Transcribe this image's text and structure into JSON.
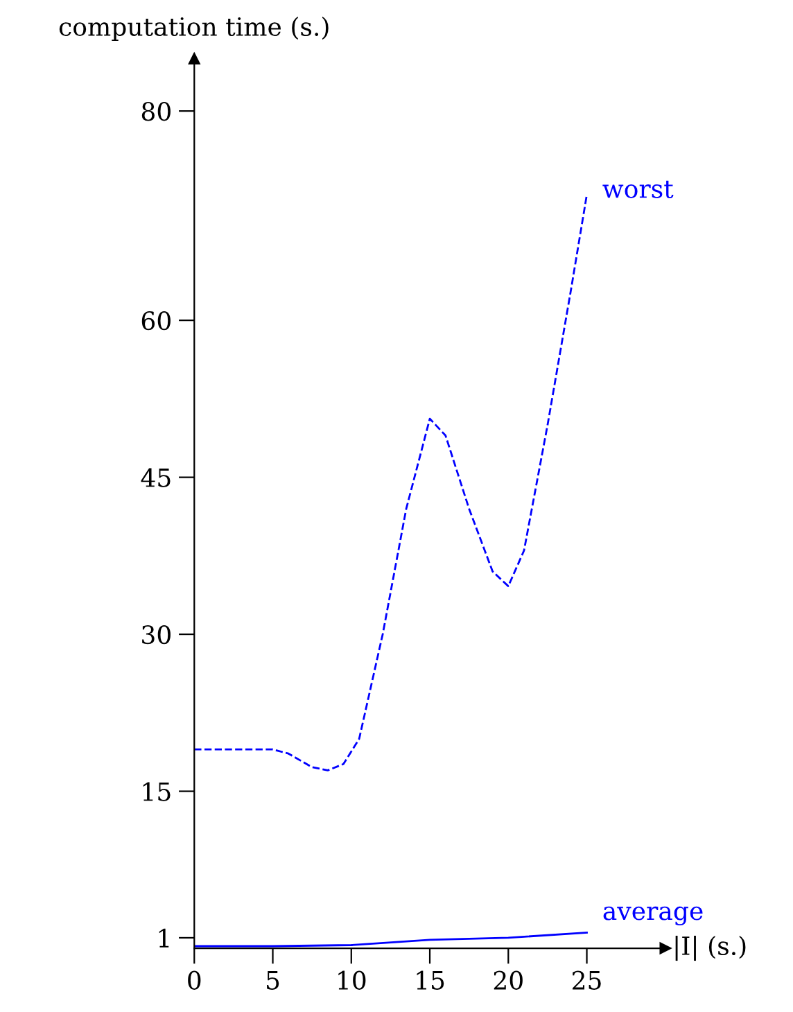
{
  "chart_data": {
    "type": "line",
    "ylabel": "computation time (s.)",
    "xlabel": "|I| (s.)",
    "xlim": [
      0,
      30
    ],
    "ylim": [
      0,
      85
    ],
    "xticks": [
      0,
      5,
      10,
      15,
      20,
      25
    ],
    "yticks": [
      1,
      15,
      30,
      45,
      60,
      80
    ],
    "grid": false,
    "legend": false,
    "marker": "none",
    "series": [
      {
        "name": "worst",
        "color": "#0000ff",
        "line_style": "dashed",
        "x": [
          0,
          5,
          6,
          7.5,
          8.5,
          9.5,
          10.5,
          12,
          13.5,
          15,
          16,
          17.5,
          19,
          20,
          21,
          22.5,
          24,
          25
        ],
        "values": [
          19,
          19,
          18.6,
          17.3,
          17,
          17.6,
          20,
          30,
          42,
          50.6,
          49,
          42,
          36,
          34.6,
          38,
          50,
          63,
          72
        ]
      },
      {
        "name": "average",
        "color": "#0000ff",
        "line_style": "solid",
        "x": [
          0,
          5,
          10,
          15,
          20,
          25
        ],
        "values": [
          0.2,
          0.2,
          0.3,
          0.8,
          1.0,
          1.5
        ]
      }
    ]
  }
}
